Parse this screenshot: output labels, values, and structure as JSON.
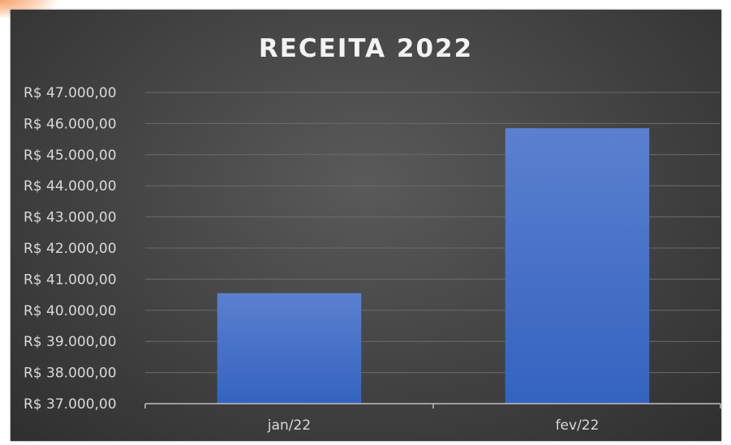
{
  "chart_data": {
    "type": "bar",
    "title": "RECEITA 2022",
    "categories": [
      "jan/22",
      "fev/22"
    ],
    "values": [
      40550,
      45850
    ],
    "ylim": [
      37000,
      47000
    ],
    "yticks": [
      {
        "value": 37000,
        "label": "R$ 37.000,00"
      },
      {
        "value": 38000,
        "label": "R$ 38.000,00"
      },
      {
        "value": 39000,
        "label": "R$ 39.000,00"
      },
      {
        "value": 40000,
        "label": "R$ 40.000,00"
      },
      {
        "value": 41000,
        "label": "R$ 41.000,00"
      },
      {
        "value": 42000,
        "label": "R$ 42.000,00"
      },
      {
        "value": 43000,
        "label": "R$ 43.000,00"
      },
      {
        "value": 44000,
        "label": "R$ 44.000,00"
      },
      {
        "value": 45000,
        "label": "R$ 45.000,00"
      },
      {
        "value": 46000,
        "label": "R$ 46.000,00"
      },
      {
        "value": 47000,
        "label": "R$ 47.000,00"
      }
    ],
    "grid": true,
    "legend": "none",
    "bar_color": "#4472c4"
  }
}
